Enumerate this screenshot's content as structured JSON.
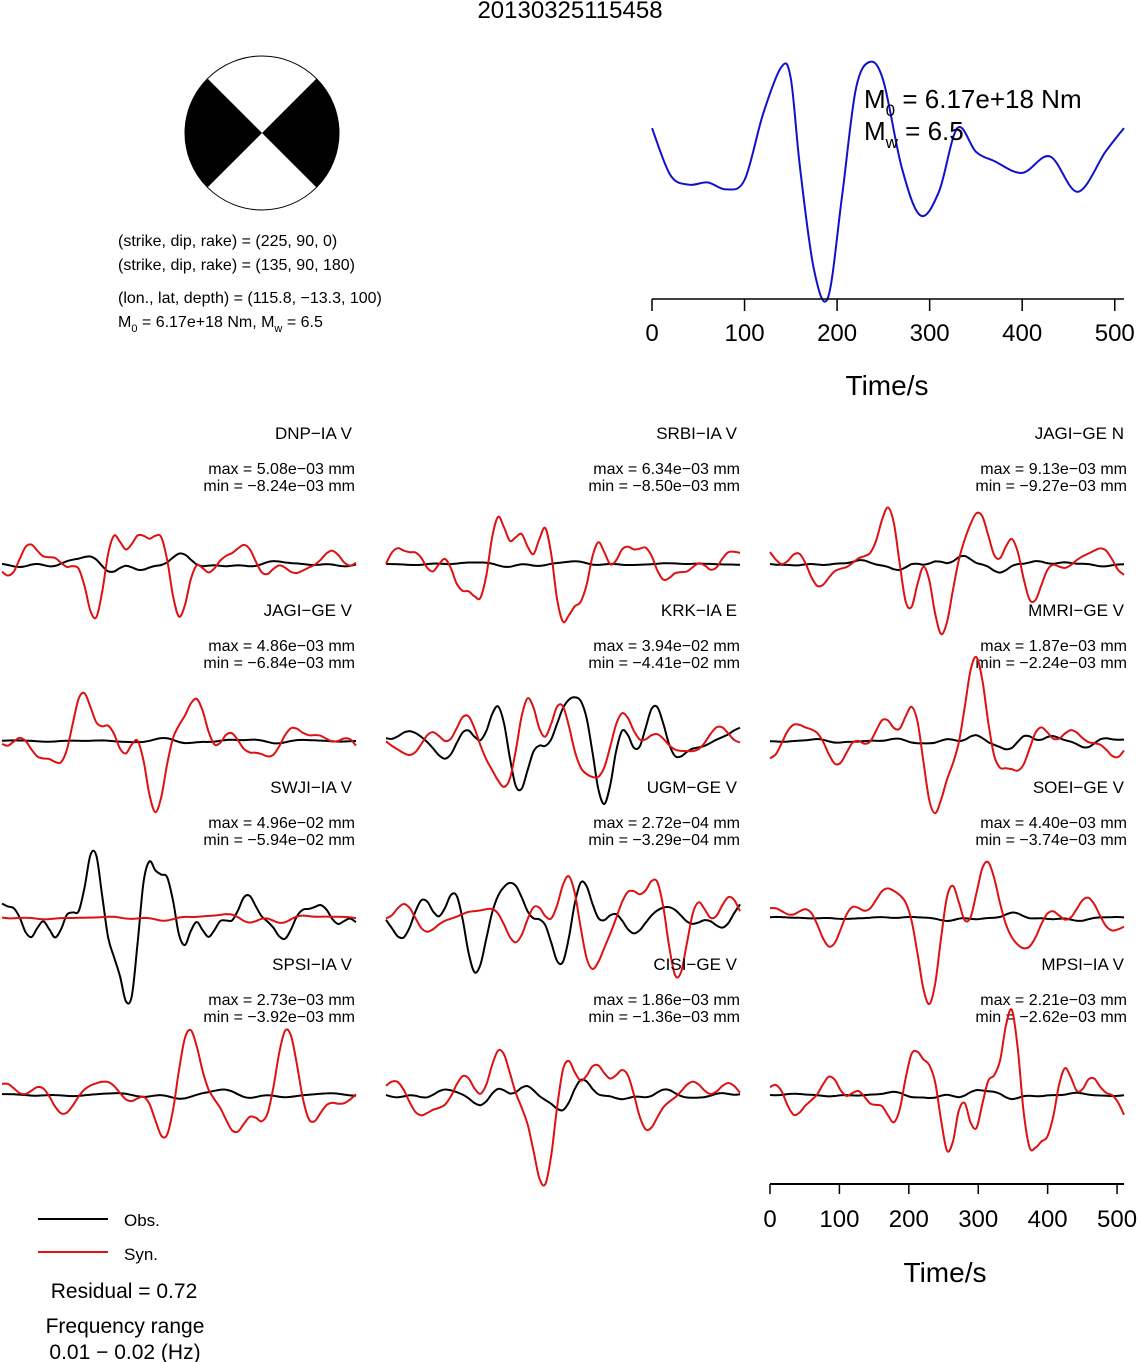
{
  "title": "20130325115458",
  "beachball": {
    "plane1": "(strike, dip, rake) = (225, 90, 0)",
    "plane2": "(strike, dip, rake) = (135, 90, 180)",
    "location": "(lon., lat, depth) = (115.8, −13.3, 100)",
    "moment_line": {
      "m0": "M",
      "m0_sub": "0",
      "m0_val": " = 6.17e+18 Nm, M",
      "mw_sub": "w",
      "mw_val": " = 6.5"
    }
  },
  "stf": {
    "m0_label": "M",
    "m0_sub": "0",
    "m0_text": " = 6.17e+18 Nm",
    "mw_label": "M",
    "mw_sub": "w",
    "mw_text": " = 6.5",
    "xlabel": "Time/s",
    "xticks": [
      "0",
      "100",
      "200",
      "300",
      "400",
      "500"
    ]
  },
  "traces_xlabel": "Time/s",
  "traces_xticks": [
    "0",
    "100",
    "200",
    "300",
    "400",
    "500"
  ],
  "legend": {
    "obs": "Obs.",
    "syn": "Syn."
  },
  "residual": "Residual = 0.72",
  "freq_label": "Frequency range",
  "freq_value": "0.01 − 0.02 (Hz)",
  "stations": [
    {
      "name": "DNP−IA V",
      "max": "max = 5.08e−03 mm",
      "min": "min = −8.24e−03 mm"
    },
    {
      "name": "SRBI−IA V",
      "max": "max = 6.34e−03 mm",
      "min": "min = −8.50e−03 mm"
    },
    {
      "name": "JAGI−GE N",
      "max": "max = 9.13e−03 mm",
      "min": "min = −9.27e−03 mm"
    },
    {
      "name": "JAGI−GE V",
      "max": "max = 4.86e−03 mm",
      "min": "min = −6.84e−03 mm"
    },
    {
      "name": "KRK−IA E",
      "max": "max = 3.94e−02 mm",
      "min": "min = −4.41e−02 mm"
    },
    {
      "name": "MMRI−GE V",
      "max": "max = 1.87e−03 mm",
      "min": "min = −2.24e−03 mm"
    },
    {
      "name": "SWJI−IA V",
      "max": "max = 4.96e−02 mm",
      "min": "min = −5.94e−02 mm"
    },
    {
      "name": "UGM−GE V",
      "max": "max = 2.72e−04 mm",
      "min": "min = −3.29e−04 mm"
    },
    {
      "name": "SOEI−GE V",
      "max": "max = 4.40e−03 mm",
      "min": "min = −3.74e−03 mm"
    },
    {
      "name": "SPSI−IA V",
      "max": "max = 2.73e−03 mm",
      "min": "min = −3.92e−03 mm"
    },
    {
      "name": "CISI−GE V",
      "max": "max = 1.86e−03 mm",
      "min": "min = −1.36e−03 mm"
    },
    {
      "name": "MPSI−IA V",
      "max": "max = 2.21e−03 mm",
      "min": "min = −2.62e−03 mm"
    }
  ],
  "chart_data": {
    "type": "line",
    "colors": {
      "obs": "#000000",
      "syn": "#dd1111",
      "stf": "#1111cc"
    },
    "stf_series": {
      "x": [
        0,
        20,
        40,
        60,
        80,
        100,
        120,
        140,
        150,
        160,
        175,
        190,
        205,
        220,
        235,
        250,
        270,
        290,
        310,
        330,
        350,
        370,
        400,
        430,
        460,
        490,
        510
      ],
      "y": [
        0.72,
        0.52,
        0.48,
        0.49,
        0.46,
        0.5,
        0.78,
        0.98,
        0.93,
        0.55,
        0.12,
        0.0,
        0.42,
        0.88,
        1.0,
        0.92,
        0.55,
        0.35,
        0.45,
        0.72,
        0.62,
        0.58,
        0.53,
        0.6,
        0.45,
        0.62,
        0.72
      ]
    }
  }
}
